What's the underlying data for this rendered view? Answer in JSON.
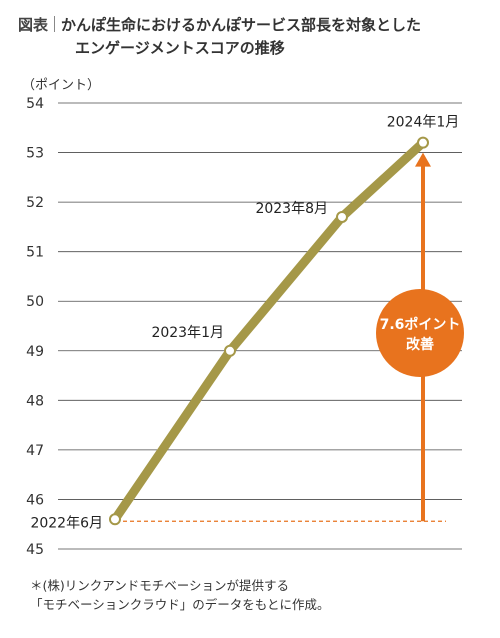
{
  "header": {
    "fig_tag": "図表",
    "title_line1": "かんぽ生命におけるかんぽサービス部長を対象とした",
    "title_line2": "エンゲージメントスコアの推移"
  },
  "unit_label": "（ポイント）",
  "annotation": {
    "line1": "7.6ポイント",
    "line2": "改善"
  },
  "footnote": {
    "line1": "＊(株)リンクアンドモチベーションが提供する",
    "line2": "「モチベーションクラウド」のデータをもとに作成。"
  },
  "colors": {
    "line": "#a59848",
    "accent": "#e8731e",
    "grid": "#4a4a4a"
  },
  "chart_data": {
    "type": "line",
    "ylim": [
      45,
      54
    ],
    "yticks": [
      "45",
      "46",
      "47",
      "48",
      "49",
      "50",
      "51",
      "52",
      "53",
      "54"
    ],
    "points": [
      {
        "label": "2022年6月",
        "value": 45.6
      },
      {
        "label": "2023年1月",
        "value": 49.0
      },
      {
        "label": "2023年8月",
        "value": 51.7
      },
      {
        "label": "2024年1月",
        "value": 53.2
      }
    ],
    "improvement": 7.6,
    "grid": true
  }
}
